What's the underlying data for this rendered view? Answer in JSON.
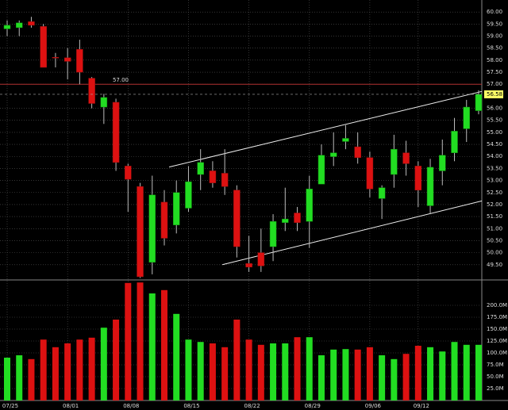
{
  "chart_data": {
    "type": "candlestick",
    "categories": [
      "07/25",
      null,
      null,
      null,
      null,
      "08/01",
      null,
      null,
      null,
      null,
      "08/08",
      null,
      null,
      null,
      null,
      "08/15",
      null,
      null,
      null,
      null,
      "08/22",
      null,
      null,
      null,
      null,
      "08/29",
      null,
      null,
      null,
      null,
      "09/06",
      null,
      null,
      null,
      "09/12",
      null,
      null,
      null,
      null,
      null
    ],
    "open": [
      59.3,
      59.35,
      59.6,
      59.4,
      58.12,
      58.1,
      58.45,
      57.25,
      56.05,
      56.25,
      53.6,
      52.75,
      49.6,
      52.1,
      51.15,
      51.85,
      53.25,
      53.4,
      53.3,
      52.6,
      49.55,
      50.0,
      50.25,
      51.25,
      51.65,
      51.3,
      52.85,
      53.99,
      54.62,
      54.4,
      53.95,
      52.25,
      53.25,
      54.15,
      53.6,
      51.95,
      53.4,
      54.15,
      55.15,
      55.9
    ],
    "high": [
      59.65,
      59.65,
      59.8,
      59.5,
      58.3,
      58.5,
      58.85,
      57.3,
      56.6,
      56.4,
      53.7,
      52.9,
      53.2,
      52.6,
      53.0,
      53.6,
      54.3,
      53.8,
      54.3,
      52.8,
      50.7,
      51.0,
      51.6,
      52.7,
      51.9,
      53.2,
      54.5,
      55.0,
      55.3,
      55.0,
      54.2,
      52.8,
      54.9,
      54.65,
      53.8,
      53.9,
      54.7,
      55.6,
      56.35,
      56.75
    ],
    "low": [
      59.0,
      59.0,
      59.35,
      57.7,
      57.7,
      57.2,
      57.0,
      56.0,
      55.35,
      53.4,
      51.7,
      48.95,
      49.1,
      50.3,
      50.8,
      51.7,
      52.6,
      52.7,
      52.4,
      49.8,
      49.2,
      49.2,
      49.65,
      50.9,
      50.9,
      50.2,
      52.9,
      53.6,
      54.3,
      53.7,
      52.3,
      51.4,
      52.7,
      53.2,
      51.9,
      51.6,
      52.8,
      53.8,
      54.6,
      55.75
    ],
    "close": [
      59.45,
      59.55,
      59.45,
      57.7,
      58.1,
      57.95,
      57.5,
      56.2,
      56.45,
      53.75,
      53.05,
      49.0,
      52.4,
      50.6,
      52.5,
      52.95,
      53.75,
      52.9,
      52.75,
      50.25,
      49.4,
      49.45,
      51.3,
      51.4,
      51.25,
      52.65,
      54.05,
      54.15,
      54.75,
      53.95,
      52.65,
      52.7,
      54.3,
      53.7,
      52.6,
      53.55,
      54.05,
      55.05,
      56.05,
      56.58
    ],
    "up_color": "#22dd22",
    "down_color": "#dd1111",
    "ylim": [
      48.9,
      60.5
    ],
    "yticks": [
      {
        "value": 49.5,
        "label": "49.50"
      },
      {
        "value": 50,
        "label": "50.00"
      },
      {
        "value": 50.5,
        "label": "50.50"
      },
      {
        "value": 51,
        "label": "51.00"
      },
      {
        "value": 51.5,
        "label": "51.50"
      },
      {
        "value": 52,
        "label": "52.00"
      },
      {
        "value": 52.5,
        "label": "52.50"
      },
      {
        "value": 53,
        "label": "53.00"
      },
      {
        "value": 53.5,
        "label": "53.50"
      },
      {
        "value": 54,
        "label": "54.00"
      },
      {
        "value": 54.5,
        "label": "54.50"
      },
      {
        "value": 55,
        "label": "55.00"
      },
      {
        "value": 55.5,
        "label": "55.50"
      },
      {
        "value": 56,
        "label": "56.00"
      },
      {
        "value": 57,
        "label": "57.00"
      },
      {
        "value": 57.5,
        "label": "57.50"
      },
      {
        "value": 58,
        "label": "58.00"
      },
      {
        "value": 58.5,
        "label": "58.50"
      },
      {
        "value": 59,
        "label": "59.00"
      },
      {
        "value": 59.5,
        "label": "59.50"
      },
      {
        "value": 60,
        "label": "60.00"
      }
    ],
    "grid": true,
    "hline": {
      "value": 57,
      "label": "57.00",
      "color": "#b03030"
    },
    "trendlines": [
      {
        "start": [
          13.4,
          53.56
        ],
        "end": [
          40.5,
          56.7
        ]
      },
      {
        "start": [
          17.8,
          49.5
        ],
        "end": [
          40.5,
          52.15
        ]
      }
    ],
    "volume": {
      "values": [
        90,
        95,
        87,
        128,
        112,
        120,
        128,
        132,
        153,
        170,
        247,
        248,
        225,
        232,
        182,
        128,
        123,
        120,
        112,
        170,
        128,
        117,
        120,
        120,
        133,
        133,
        95,
        107,
        108,
        107,
        112,
        95,
        87,
        98,
        115,
        112,
        103,
        123,
        117,
        117
      ],
      "ylim": [
        0,
        250
      ],
      "yticks": [
        {
          "value": 25,
          "label": "25.0M"
        },
        {
          "value": 50,
          "label": "50.0M"
        },
        {
          "value": 75,
          "label": "75.0M"
        },
        {
          "value": 100,
          "label": "100.0M"
        },
        {
          "value": 125,
          "label": "125.0M"
        },
        {
          "value": 150,
          "label": "150.0M"
        },
        {
          "value": 175,
          "label": "175.0M"
        },
        {
          "value": 200,
          "label": "200.0M"
        }
      ]
    }
  }
}
